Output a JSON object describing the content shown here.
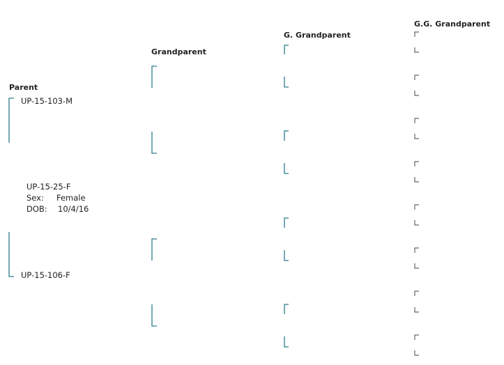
{
  "headers": {
    "parent": "Parent",
    "grandparent": "Grandparent",
    "g_grandparent": "G. Grandparent",
    "gg_grandparent": "G.G. Grandparent"
  },
  "subject": {
    "id": "UP-15-25-F",
    "sex_label": "Sex:",
    "sex": "Female",
    "dob_label": "DOB:",
    "dob": "10/4/16"
  },
  "parents": [
    {
      "id": "UP-15-103-M"
    },
    {
      "id": "UP-15-106-F"
    }
  ]
}
